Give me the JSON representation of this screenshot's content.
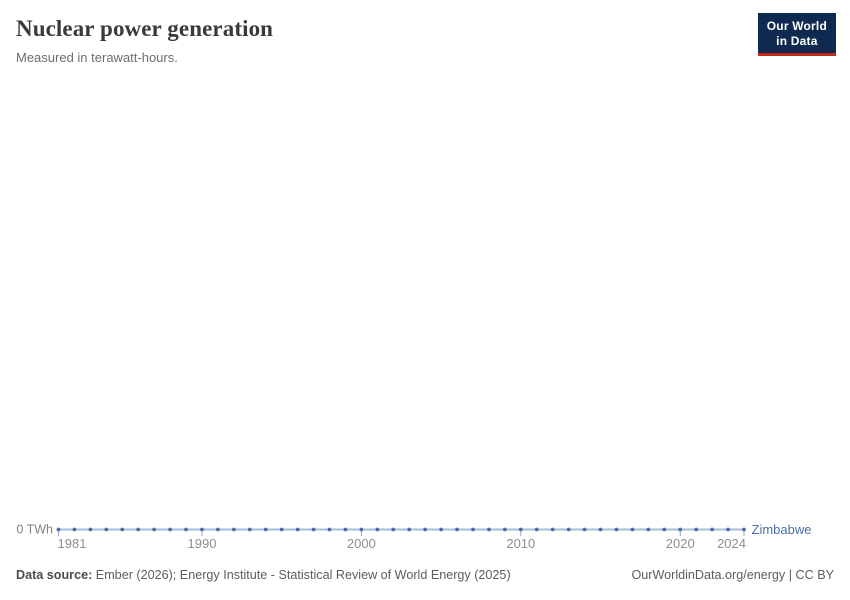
{
  "header": {
    "title": "Nuclear power generation",
    "subtitle": "Measured in terawatt-hours."
  },
  "logo": {
    "line1": "Our World",
    "line2": "in Data",
    "bg_color": "#0e2a50",
    "accent_color": "#c5271d"
  },
  "chart_data": {
    "type": "line",
    "title": "Nuclear power generation",
    "subtitle": "Measured in terawatt-hours.",
    "xlabel": "",
    "ylabel": "TWh",
    "xlim": [
      1981,
      2024
    ],
    "ylim": [
      0,
      null
    ],
    "grid": false,
    "legend_position": "end-of-line",
    "x_ticks": [
      1981,
      1990,
      2000,
      2010,
      2020,
      2024
    ],
    "y_tick_label": "0 TWh",
    "series": [
      {
        "name": "Zimbabwe",
        "color": "#4a6da5",
        "x": [
          1981,
          1982,
          1983,
          1984,
          1985,
          1986,
          1987,
          1988,
          1989,
          1990,
          1991,
          1992,
          1993,
          1994,
          1995,
          1996,
          1997,
          1998,
          1999,
          2000,
          2001,
          2002,
          2003,
          2004,
          2005,
          2006,
          2007,
          2008,
          2009,
          2010,
          2011,
          2012,
          2013,
          2014,
          2015,
          2016,
          2017,
          2018,
          2019,
          2020,
          2021,
          2022,
          2023,
          2024
        ],
        "values": [
          0,
          0,
          0,
          0,
          0,
          0,
          0,
          0,
          0,
          0,
          0,
          0,
          0,
          0,
          0,
          0,
          0,
          0,
          0,
          0,
          0,
          0,
          0,
          0,
          0,
          0,
          0,
          0,
          0,
          0,
          0,
          0,
          0,
          0,
          0,
          0,
          0,
          0,
          0,
          0,
          0,
          0,
          0,
          0
        ]
      }
    ],
    "colors": {
      "line": "#a7bbd8",
      "marker": "#4a6da5",
      "series_label": "#4a6fab",
      "tick": "#9aa9c0",
      "axis_text": "#8f8f8f",
      "y_label_text": "#808080"
    }
  },
  "footer": {
    "source_label": "Data source:",
    "source_text": " Ember (2026); Energy Institute - Statistical Review of World Energy (2025)",
    "right_text": "OurWorldinData.org/energy | CC BY"
  }
}
